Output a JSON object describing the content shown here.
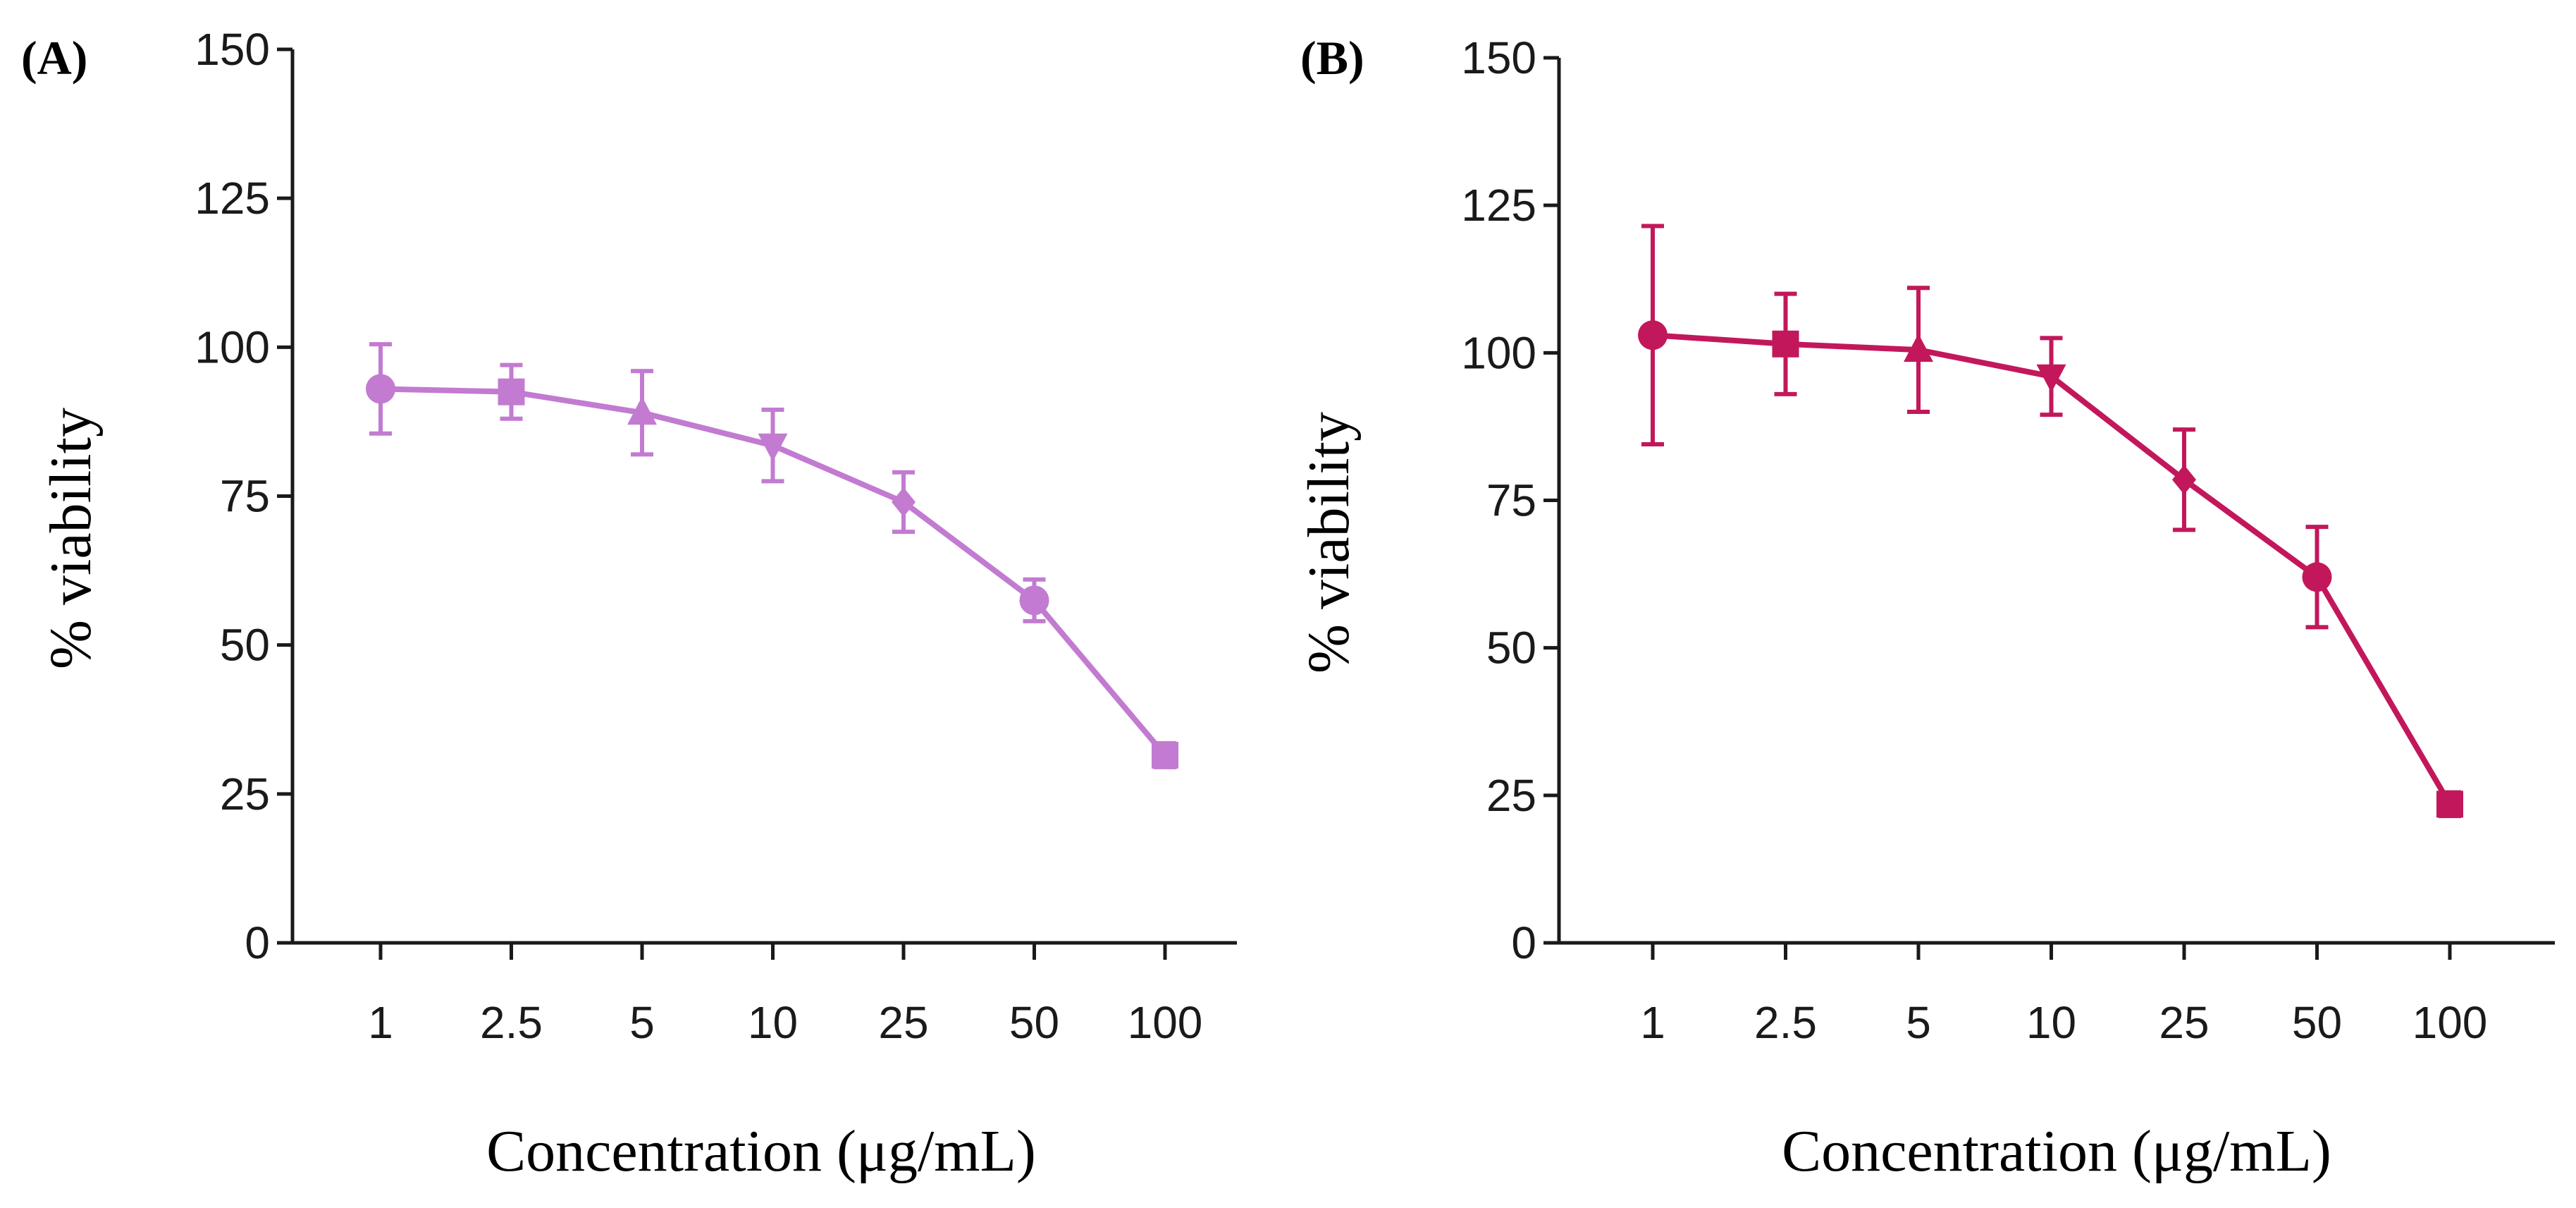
{
  "chart_data": [
    {
      "panel_label": "(A)",
      "type": "line",
      "title": "",
      "xlabel": "Concentration (μg/mL)",
      "ylabel": "% viability",
      "categories": [
        "1",
        "2.5",
        "5",
        "10",
        "25",
        "50",
        "100"
      ],
      "yticks": [
        "0",
        "25",
        "50",
        "75",
        "100",
        "125",
        "150"
      ],
      "ylim": [
        0,
        150
      ],
      "grid": false,
      "color": "#C27BD1",
      "series": [
        {
          "name": "viability",
          "values": [
            93,
            92.5,
            89,
            83.5,
            74,
            57.5,
            31.5
          ],
          "errors": [
            7.5,
            4.5,
            7,
            6,
            5,
            3.5,
            2
          ],
          "markers": [
            "circle",
            "square",
            "triangle-up",
            "triangle-down",
            "diamond",
            "circle",
            "square"
          ]
        }
      ]
    },
    {
      "panel_label": "(B)",
      "type": "line",
      "title": "",
      "xlabel": "Concentration (μg/mL)",
      "ylabel": "% viability",
      "categories": [
        "1",
        "2.5",
        "5",
        "10",
        "25",
        "50",
        "100"
      ],
      "yticks": [
        "0",
        "25",
        "50",
        "75",
        "100",
        "125",
        "150"
      ],
      "ylim": [
        0,
        150
      ],
      "grid": false,
      "color": "#C2185B",
      "series": [
        {
          "name": "viability",
          "values": [
            103,
            101.5,
            100.5,
            96,
            78.5,
            62,
            23.5
          ],
          "errors": [
            18.5,
            8.5,
            10.5,
            6.5,
            8.5,
            8.5,
            2
          ],
          "markers": [
            "circle",
            "square",
            "triangle-up",
            "triangle-down",
            "diamond",
            "circle",
            "square"
          ]
        }
      ]
    }
  ]
}
